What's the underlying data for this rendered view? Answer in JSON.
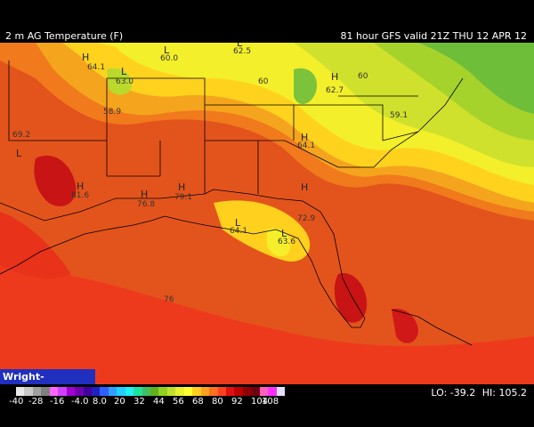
{
  "header": {
    "title_left": "2 m AG Temperature (F)",
    "title_right": "81 hour GFS valid 21Z THU 12 APR 12"
  },
  "branding": {
    "label": "Wright-Weather.com"
  },
  "map": {
    "markers": [
      {
        "symbol": "H",
        "value": "64.1"
      },
      {
        "symbol": "L",
        "value": "60.0"
      },
      {
        "symbol": "L",
        "value": "62.5"
      },
      {
        "symbol": "L",
        "value": "63.0"
      },
      {
        "symbol": "",
        "value": "60"
      },
      {
        "symbol": "H",
        "value": "62.7"
      },
      {
        "symbol": "",
        "value": "60"
      },
      {
        "symbol": "",
        "value": "58.9"
      },
      {
        "symbol": "",
        "value": "59.1"
      },
      {
        "symbol": "L",
        "value": "69.2"
      },
      {
        "symbol": "H",
        "value": "64.1"
      },
      {
        "symbol": "H",
        "value": "81.6"
      },
      {
        "symbol": "H",
        "value": "76.8"
      },
      {
        "symbol": "H",
        "value": "79.1"
      },
      {
        "symbol": "L",
        "value": "64.1"
      },
      {
        "symbol": "H",
        "value": "72.9"
      },
      {
        "symbol": "L",
        "value": "63.6"
      },
      {
        "symbol": "",
        "value": "76"
      }
    ]
  },
  "legend": {
    "ticks": [
      "-40",
      "-28",
      "-16",
      "-4.0",
      "8.0",
      "20",
      "32",
      "44",
      "56",
      "68",
      "80",
      "92",
      "104",
      "108"
    ],
    "colors": [
      "#e8e8e8",
      "#c8c8c8",
      "#a0a0a0",
      "#808080",
      "#ff66ff",
      "#d040ff",
      "#a000d0",
      "#7000b0",
      "#4000a0",
      "#2020c0",
      "#3060ff",
      "#30a0ff",
      "#20d0ff",
      "#20f0f0",
      "#20e0a0",
      "#40c060",
      "#60b020",
      "#90d020",
      "#c0e030",
      "#e8f030",
      "#ffff30",
      "#ffd020",
      "#ffa020",
      "#ff7020",
      "#ff4020",
      "#e01010",
      "#c00000",
      "#900000",
      "#700010",
      "#ff60c0",
      "#ff30ff",
      "#e0e0ff"
    ],
    "lo_label": "LO: -39.2",
    "hi_label": "HI: 105.2"
  }
}
